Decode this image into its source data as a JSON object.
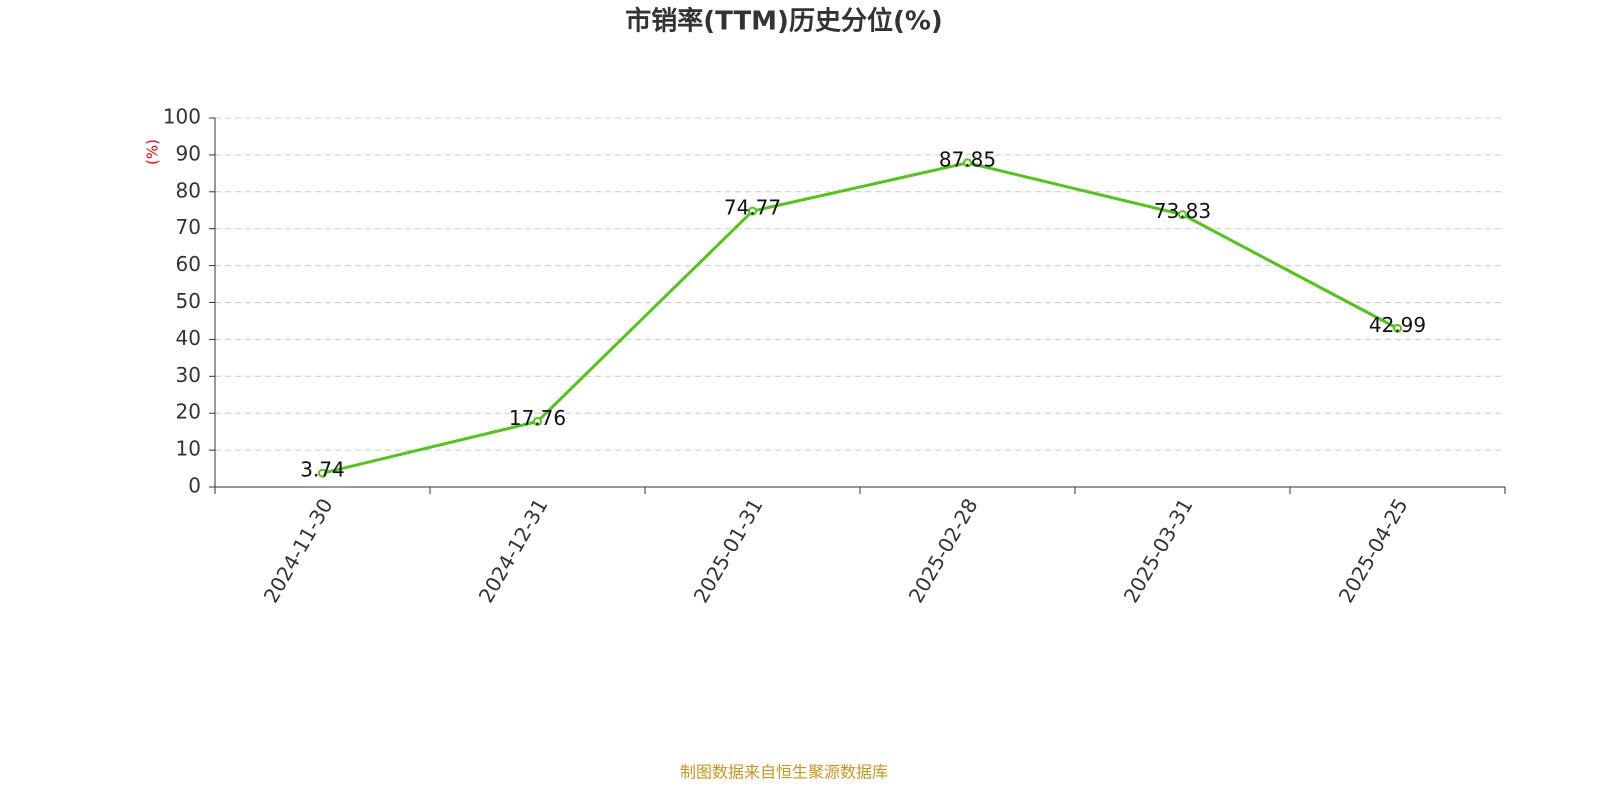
{
  "chart_data": {
    "type": "line",
    "title": "市销率(TTM)历史分位(%)",
    "y_label": "(%)",
    "categories": [
      "2024-11-30",
      "2024-12-31",
      "2025-01-31",
      "2025-02-28",
      "2025-03-31",
      "2025-04-25"
    ],
    "series": [
      {
        "name": "市销率(TTM)历史分位",
        "color": "#52c41a",
        "values": [
          3.74,
          17.76,
          74.77,
          87.85,
          73.83,
          42.99
        ]
      }
    ],
    "ylim": [
      0,
      100
    ],
    "yticks": [
      0,
      10,
      20,
      30,
      40,
      50,
      60,
      70,
      80,
      90,
      100
    ],
    "grid": true,
    "source": "制图数据来自恒生聚源数据库"
  }
}
